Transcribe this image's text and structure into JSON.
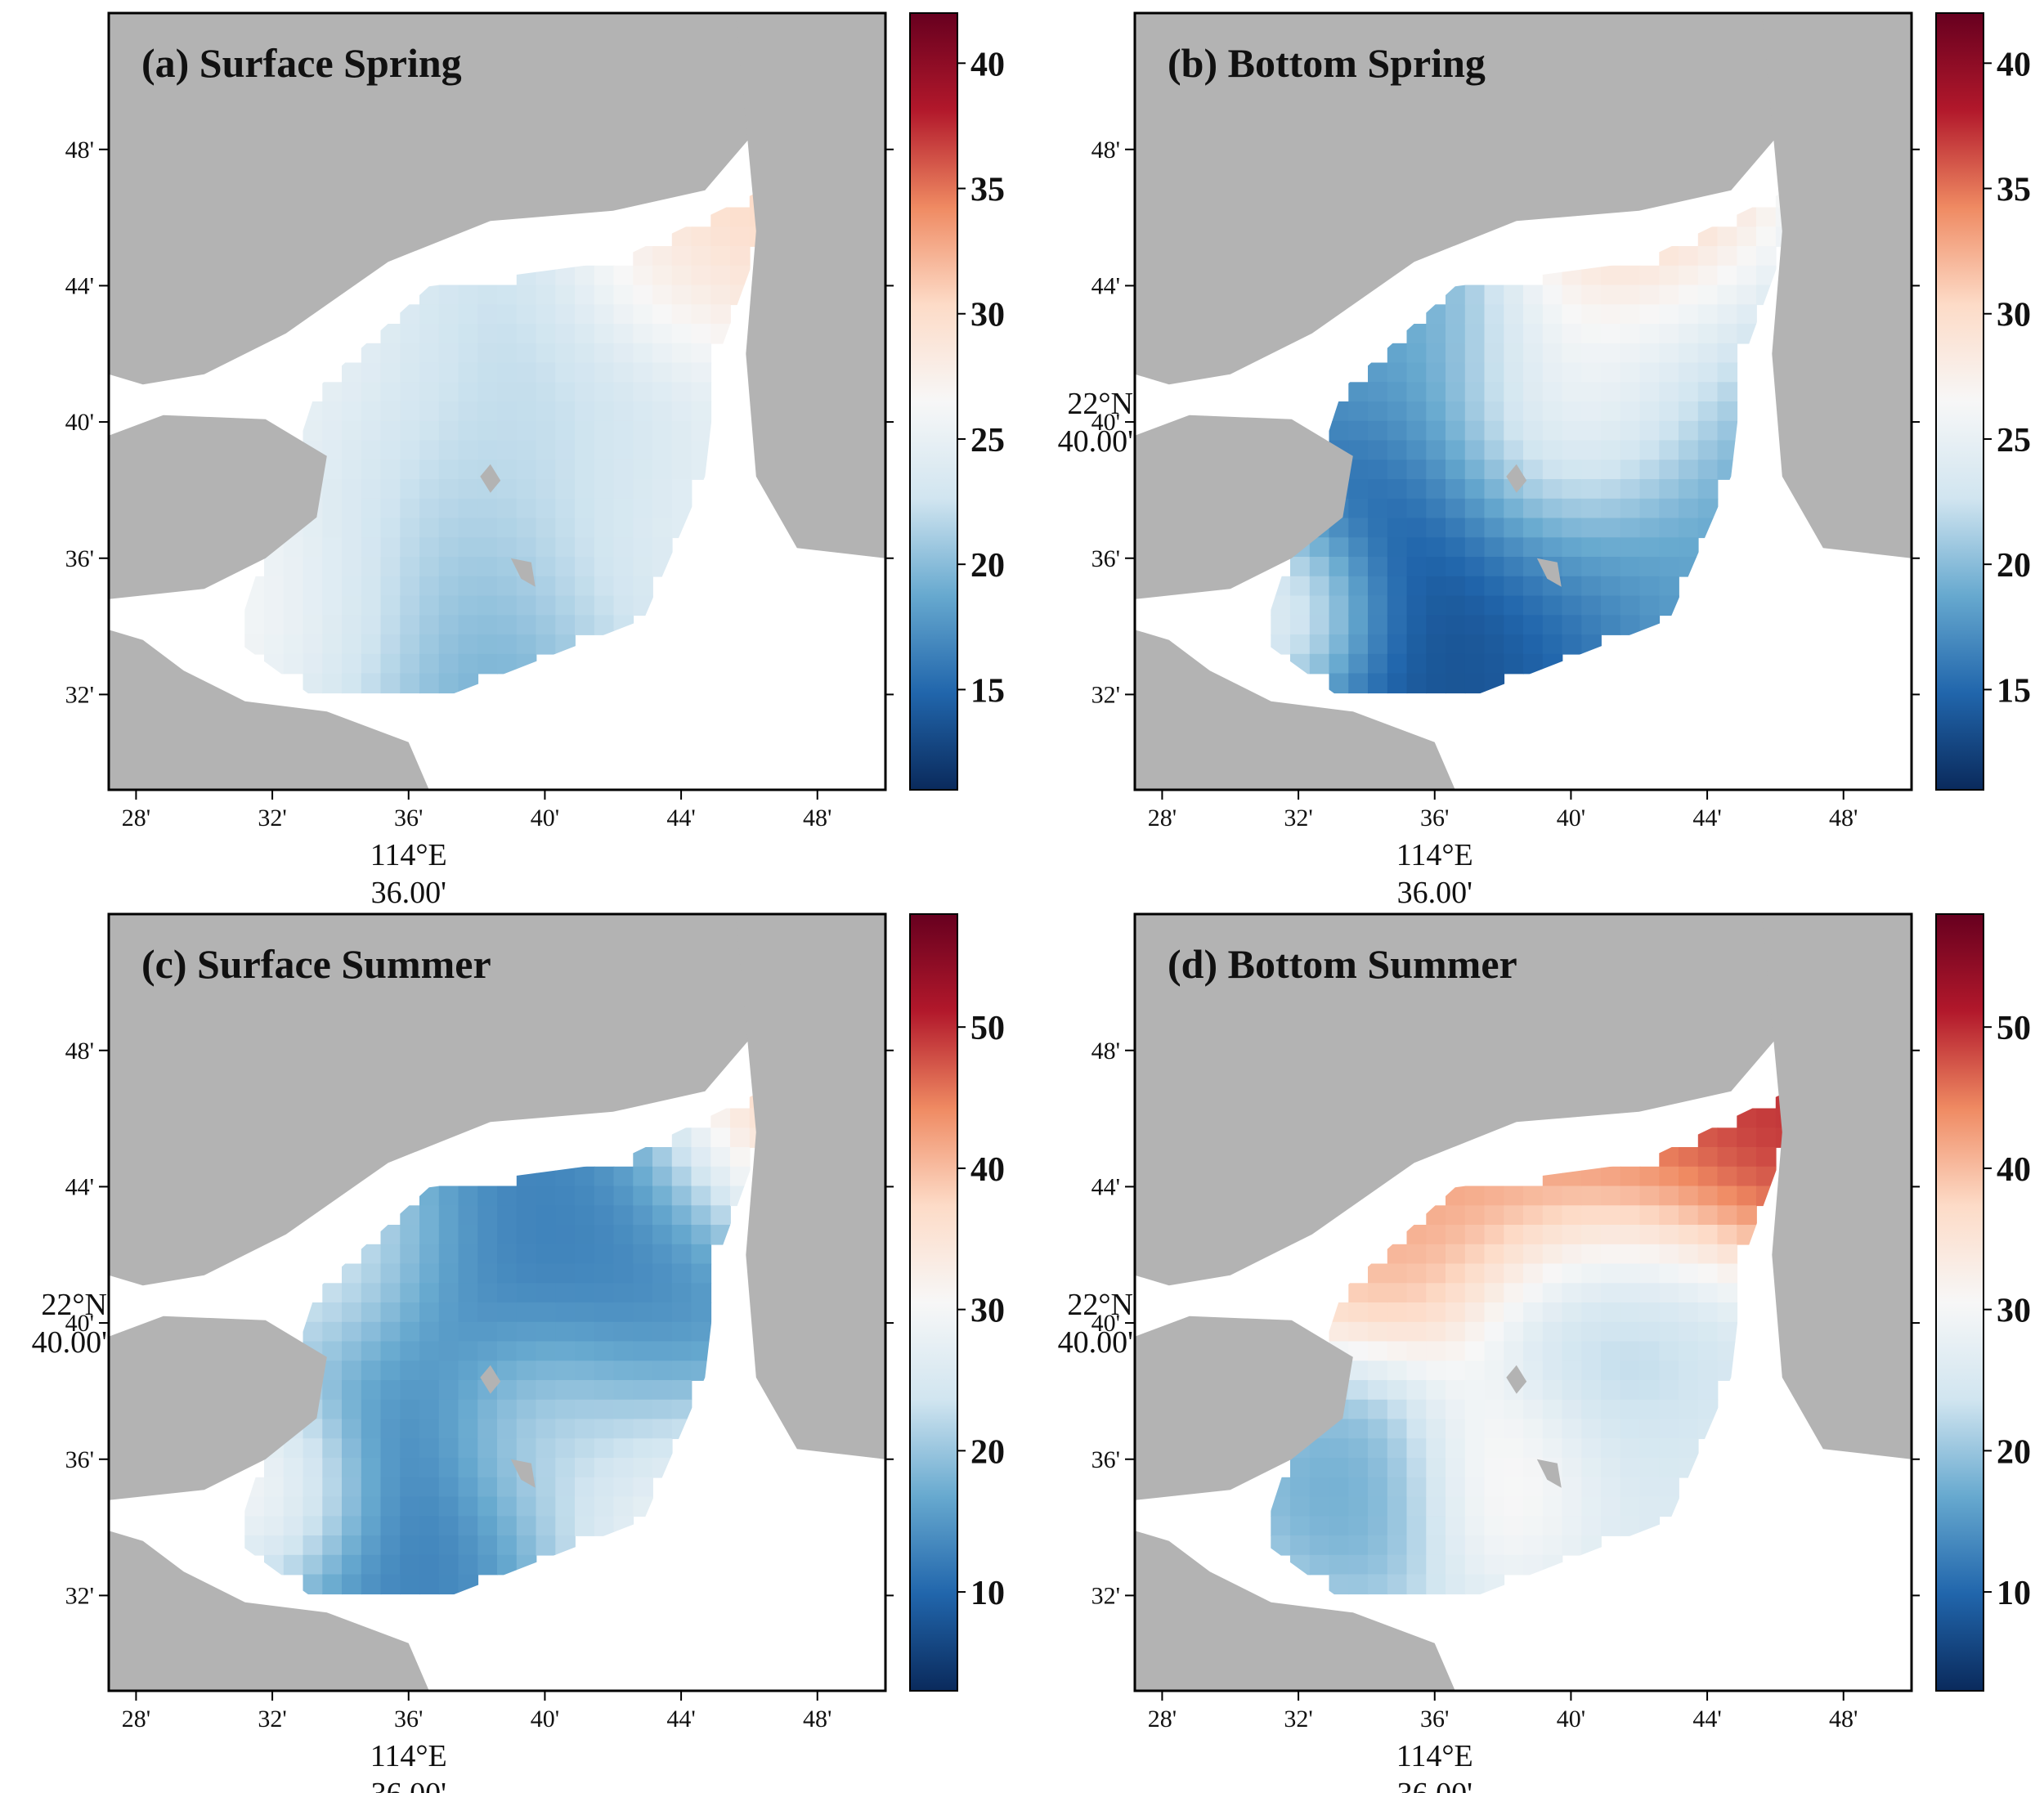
{
  "colors": {
    "land": "#b3b3b3",
    "water": "#ffffff",
    "frame": "#000000",
    "colormap": [
      "#0a2a5c",
      "#2166ac",
      "#67a9cf",
      "#d1e5f0",
      "#f7f7f7",
      "#fddbc7",
      "#ef8a62",
      "#b2182b",
      "#67001f"
    ]
  },
  "panels": [
    {
      "title": "(a) Surface Spring",
      "x_ticks": [
        "28'",
        "32'",
        "36'",
        "40'",
        "44'",
        "48'"
      ],
      "y_ticks": [
        "48'",
        "44'",
        "40'",
        "36'",
        "32'"
      ],
      "x_axis_title": [
        "114°E",
        "36.00'"
      ],
      "y_axis_title": [],
      "colorbar": {
        "min": 11,
        "max": 42,
        "ticks": [
          15,
          20,
          25,
          30,
          35,
          40
        ]
      },
      "field": {
        "base": 24,
        "blobs": [
          {
            "x": 114.613,
            "y": 22.6,
            "v": 17,
            "r": 0.09
          },
          {
            "x": 114.666,
            "y": 22.715,
            "v": 20,
            "r": 0.05
          },
          {
            "x": 114.667,
            "y": 22.667,
            "v": 24,
            "r": 0.05
          },
          {
            "x": 114.715,
            "y": 22.74,
            "v": 31,
            "r": 0.03
          },
          {
            "x": 114.768,
            "y": 22.775,
            "v": 32,
            "r": 0.06
          },
          {
            "x": 114.525,
            "y": 22.58,
            "v": 31,
            "r": 0.05
          },
          {
            "x": 114.555,
            "y": 22.7,
            "v": 29,
            "r": 0.06
          },
          {
            "x": 114.735,
            "y": 22.61,
            "v": 27,
            "r": 0.05
          }
        ]
      }
    },
    {
      "title": "(b) Bottom Spring",
      "x_ticks": [
        "28'",
        "32'",
        "36'",
        "40'",
        "44'",
        "48'"
      ],
      "y_ticks": [
        "48'",
        "44'",
        "40'",
        "36'",
        "32'"
      ],
      "x_axis_title": [
        "114°E",
        "36.00'"
      ],
      "y_axis_title": [
        "22°N",
        "40.00'"
      ],
      "colorbar": {
        "min": 11,
        "max": 42,
        "ticks": [
          15,
          20,
          25,
          30,
          35,
          40
        ]
      },
      "field": {
        "base": 22,
        "blobs": [
          {
            "x": 114.6,
            "y": 22.6,
            "v": 12,
            "r": 0.1
          },
          {
            "x": 114.7,
            "y": 22.75,
            "v": 41,
            "r": 0.04
          },
          {
            "x": 114.666,
            "y": 22.668,
            "v": 33,
            "r": 0.04
          },
          {
            "x": 114.715,
            "y": 22.72,
            "v": 19,
            "r": 0.04
          },
          {
            "x": 114.52,
            "y": 22.575,
            "v": 32,
            "r": 0.03
          },
          {
            "x": 114.56,
            "y": 22.72,
            "v": 21,
            "r": 0.05
          },
          {
            "x": 114.74,
            "y": 22.59,
            "v": 20,
            "r": 0.05
          }
        ]
      }
    },
    {
      "title": "(c) Surface Summer",
      "x_ticks": [
        "28'",
        "32'",
        "36'",
        "40'",
        "44'",
        "48'"
      ],
      "y_ticks": [
        "48'",
        "44'",
        "40'",
        "36'",
        "32'"
      ],
      "x_axis_title": [
        "114°E",
        "36.00'"
      ],
      "y_axis_title": [
        "22°N",
        "40.00'"
      ],
      "colorbar": {
        "min": 3,
        "max": 58,
        "ticks": [
          10,
          20,
          30,
          40,
          50
        ]
      },
      "field": {
        "base": 24,
        "blobs": [
          {
            "x": 114.612,
            "y": 22.6,
            "v": 10,
            "r": 0.07
          },
          {
            "x": 114.665,
            "y": 22.715,
            "v": 11,
            "r": 0.06
          },
          {
            "x": 114.705,
            "y": 22.668,
            "v": 13,
            "r": 0.05
          },
          {
            "x": 114.78,
            "y": 22.77,
            "v": 42,
            "r": 0.04
          },
          {
            "x": 114.72,
            "y": 22.58,
            "v": 36,
            "r": 0.04
          },
          {
            "x": 114.53,
            "y": 22.59,
            "v": 38,
            "r": 0.03
          },
          {
            "x": 114.665,
            "y": 22.62,
            "v": 30,
            "r": 0.03
          },
          {
            "x": 114.56,
            "y": 22.7,
            "v": 31,
            "r": 0.04
          }
        ]
      }
    },
    {
      "title": "(d) Bottom Summer",
      "x_ticks": [
        "28'",
        "32'",
        "36'",
        "40'",
        "44'",
        "48'"
      ],
      "y_ticks": [
        "48'",
        "44'",
        "40'",
        "36'",
        "32'"
      ],
      "x_axis_title": [
        "114°E",
        "36.00'"
      ],
      "y_axis_title": [
        "22°N",
        "40.00'"
      ],
      "colorbar": {
        "min": 3,
        "max": 58,
        "ticks": [
          10,
          20,
          30,
          40,
          50
        ]
      },
      "field": {
        "base": 24,
        "blobs": [
          {
            "x": 114.7,
            "y": 22.76,
            "v": 50,
            "r": 0.05
          },
          {
            "x": 114.6,
            "y": 22.73,
            "v": 44,
            "r": 0.05
          },
          {
            "x": 114.78,
            "y": 22.775,
            "v": 53,
            "r": 0.04
          },
          {
            "x": 114.685,
            "y": 22.667,
            "v": 17,
            "r": 0.04
          },
          {
            "x": 114.567,
            "y": 22.595,
            "v": 16,
            "r": 0.03
          },
          {
            "x": 114.635,
            "y": 22.6,
            "v": 34,
            "r": 0.03
          },
          {
            "x": 114.73,
            "y": 22.6,
            "v": 26,
            "r": 0.05
          }
        ]
      }
    }
  ]
}
